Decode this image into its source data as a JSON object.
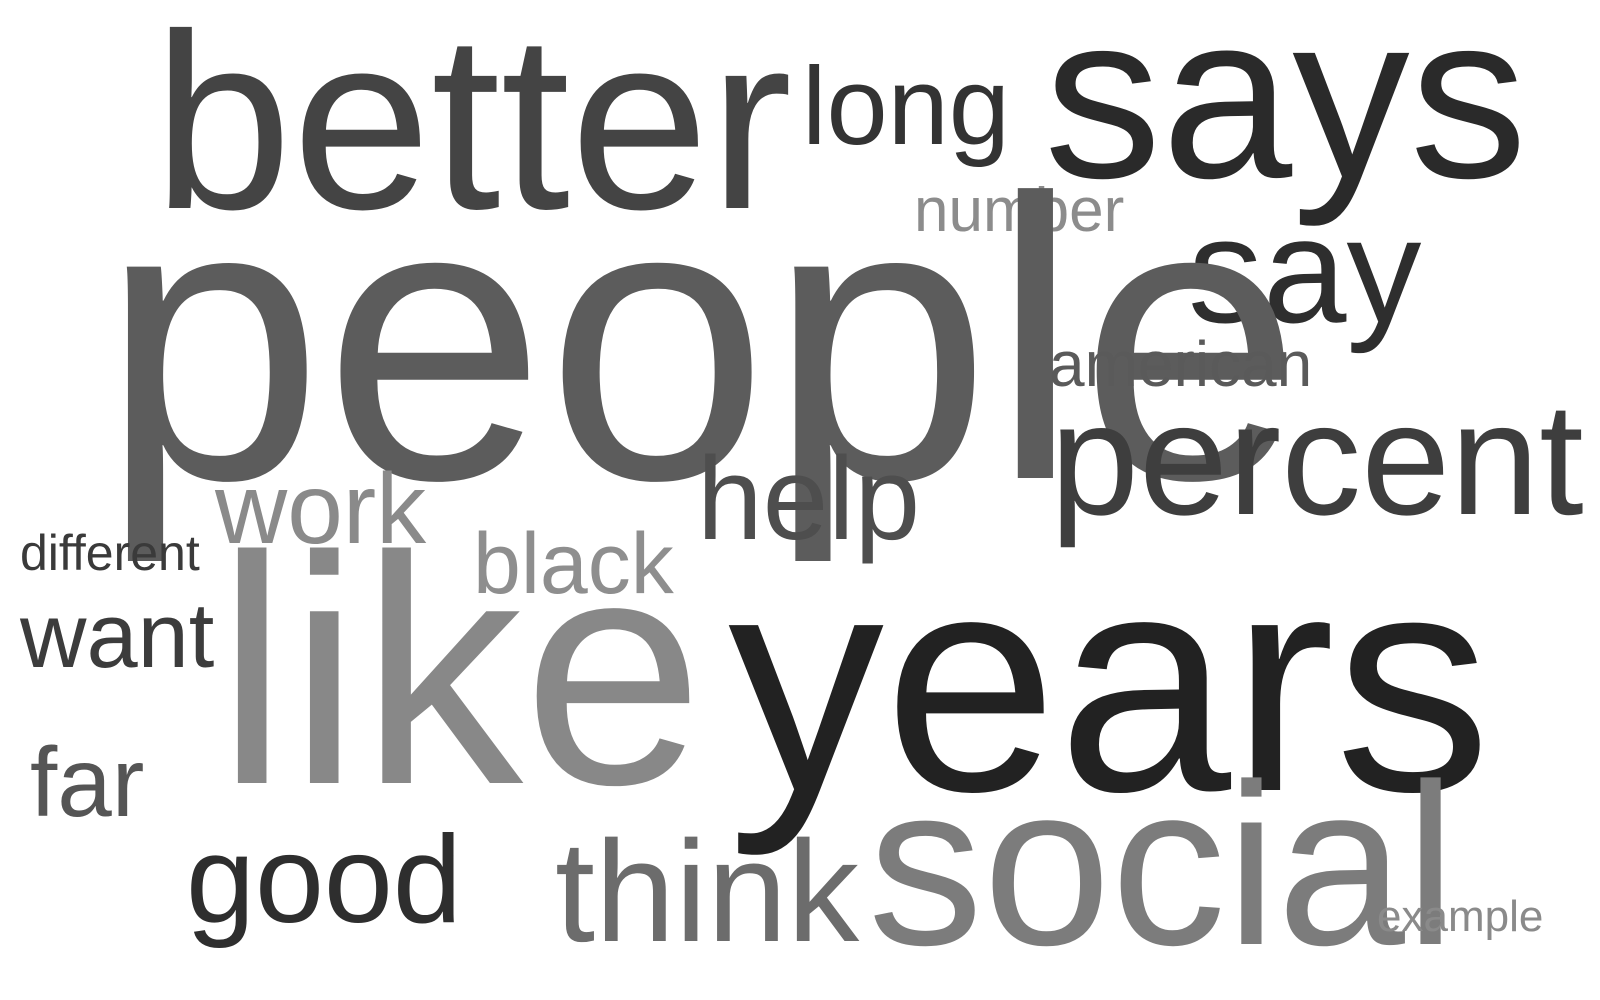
{
  "word_cloud": {
    "words": [
      {
        "id": "better",
        "text": "better",
        "color": "#444444"
      },
      {
        "id": "long",
        "text": "long",
        "color": "#333333"
      },
      {
        "id": "says",
        "text": "says",
        "color": "#2a2a2a"
      },
      {
        "id": "number",
        "text": "number",
        "color": "#8c8c8c"
      },
      {
        "id": "say",
        "text": "say",
        "color": "#2e2e2e"
      },
      {
        "id": "people",
        "text": "people",
        "color": "#5c5c5c"
      },
      {
        "id": "american",
        "text": "american",
        "color": "#5a5a5a"
      },
      {
        "id": "percent",
        "text": "percent",
        "color": "#3e3e3e"
      },
      {
        "id": "work",
        "text": "work",
        "color": "#8a8a8a"
      },
      {
        "id": "help",
        "text": "help",
        "color": "#4e4e4e"
      },
      {
        "id": "different",
        "text": "different",
        "color": "#3a3a3a"
      },
      {
        "id": "black",
        "text": "black",
        "color": "#8e8e8e"
      },
      {
        "id": "want",
        "text": "want",
        "color": "#3c3c3c"
      },
      {
        "id": "like",
        "text": "like",
        "color": "#888888"
      },
      {
        "id": "years",
        "text": "years",
        "color": "#222222"
      },
      {
        "id": "far",
        "text": "far",
        "color": "#555555"
      },
      {
        "id": "good",
        "text": "good",
        "color": "#2e2e2e"
      },
      {
        "id": "think",
        "text": "think",
        "color": "#6c6c6c"
      },
      {
        "id": "social",
        "text": "social",
        "color": "#7c7c7c"
      },
      {
        "id": "example",
        "text": "example",
        "color": "#8a8a8a"
      }
    ]
  }
}
